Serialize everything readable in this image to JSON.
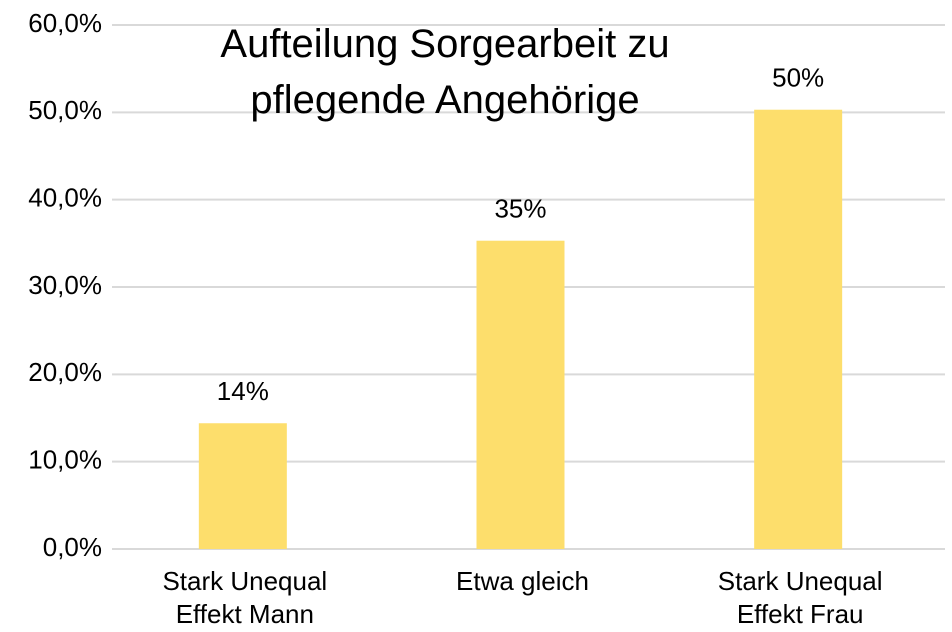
{
  "chart_data": {
    "type": "bar",
    "title": "Aufteilung Sorgearbeit zu\npflegende Angehörige",
    "categories": [
      "Stark Unequal\nEffekt Mann",
      "Etwa gleich",
      "Stark Unequal\nEffekt Frau"
    ],
    "values": [
      14.4,
      35.3,
      50.3
    ],
    "value_labels": [
      "14%",
      "35%",
      "50%"
    ],
    "color": "#fdde6c",
    "ylim": [
      0,
      60
    ],
    "yticks": [
      {
        "value": 0,
        "label": "0,0%"
      },
      {
        "value": 10,
        "label": "10,0%"
      },
      {
        "value": 20,
        "label": "20,0%"
      },
      {
        "value": 30,
        "label": "30,0%"
      },
      {
        "value": 40,
        "label": "40,0%"
      },
      {
        "value": 50,
        "label": "50,0%"
      },
      {
        "value": 60,
        "label": "60,0%"
      }
    ],
    "grid": true
  }
}
